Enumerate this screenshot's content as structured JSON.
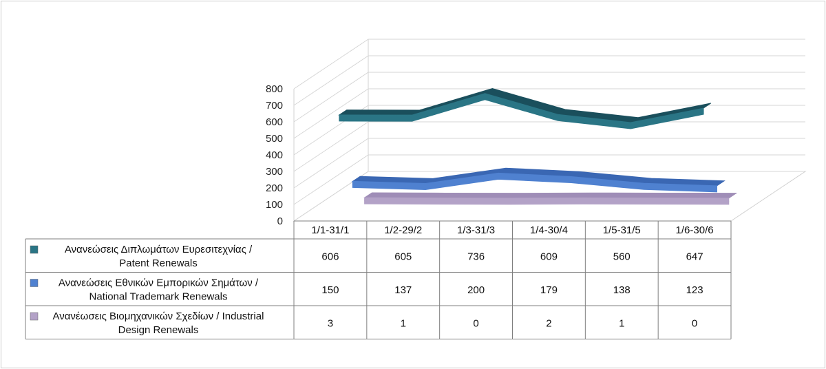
{
  "chart_data": {
    "type": "line",
    "style": "3d-ribbon-with-data-table",
    "categories": [
      "1/1-31/1",
      "1/2-29/2",
      "1/3-31/3",
      "1/4-30/4",
      "1/5-31/5",
      "1/6-30/6"
    ],
    "ylim": [
      0,
      800
    ],
    "yticks": [
      0,
      100,
      200,
      300,
      400,
      500,
      600,
      700,
      800
    ],
    "grid": true,
    "legend": "data-table-left",
    "series": [
      {
        "name": "Ανανεώσεις Διπλωμάτων Ευρεσιτεχνίας  / Patent Renewals",
        "label_lines": [
          "Ανανεώσεις Διπλωμάτων Ευρεσιτεχνίας  /",
          "Patent Renewals"
        ],
        "values": [
          606,
          605,
          736,
          609,
          560,
          647
        ],
        "color": "#2a7585",
        "top_color": "#1a4f5c"
      },
      {
        "name": "Ανανεώσεις Εθνικών Εμπορικών Σημάτων / National Trademark Renewals",
        "label_lines": [
          "Ανανεώσεις Εθνικών Εμπορικών Σημάτων /",
          "National Trademark Renewals"
        ],
        "values": [
          150,
          137,
          200,
          179,
          138,
          123
        ],
        "color": "#4f81d0",
        "top_color": "#3a67b3"
      },
      {
        "name": "Ανανέωσεις Βιομηχανικών Σχεδίων / Industrial Design Renewals",
        "label_lines": [
          "Ανανέωσεις Βιομηχανικών Σχεδίων / Industrial",
          "Design Renewals"
        ],
        "values": [
          3,
          1,
          0,
          2,
          1,
          0
        ],
        "color": "#b3a2c7",
        "top_color": "#9f8db7"
      }
    ]
  }
}
